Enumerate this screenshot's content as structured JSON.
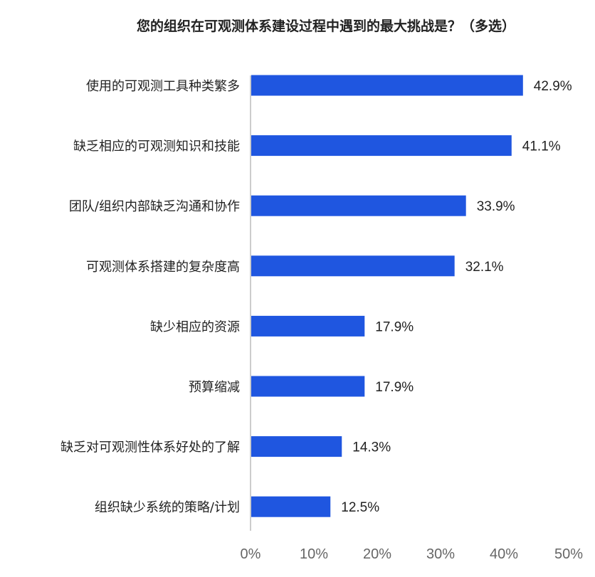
{
  "chart_data": {
    "type": "bar",
    "orientation": "horizontal",
    "title": "您的组织在可观测体系建设过程中遇到的最大挑战是？（多选）",
    "categories": [
      "使用的可观测工具种类繁多",
      "缺乏相应的可观测知识和技能",
      "团队/组织内部缺乏沟通和协作",
      "可观测体系搭建的复杂度高",
      "缺少相应的资源",
      "预算缩减",
      "缺乏对可观测性体系好处的了解",
      "组织缺少系统的策略/计划"
    ],
    "values": [
      42.9,
      41.1,
      33.9,
      32.1,
      17.9,
      17.9,
      14.3,
      12.5
    ],
    "value_labels": [
      "42.9%",
      "41.1%",
      "33.9%",
      "32.1%",
      "17.9%",
      "17.9%",
      "14.3%",
      "12.5%"
    ],
    "xlim": [
      0,
      50
    ],
    "x_ticks": [
      0,
      10,
      20,
      30,
      40,
      50
    ],
    "x_tick_labels": [
      "0%",
      "10%",
      "20%",
      "30%",
      "40%",
      "50%"
    ],
    "bar_color": "#1f56e0",
    "grid": false,
    "legend": "none"
  }
}
